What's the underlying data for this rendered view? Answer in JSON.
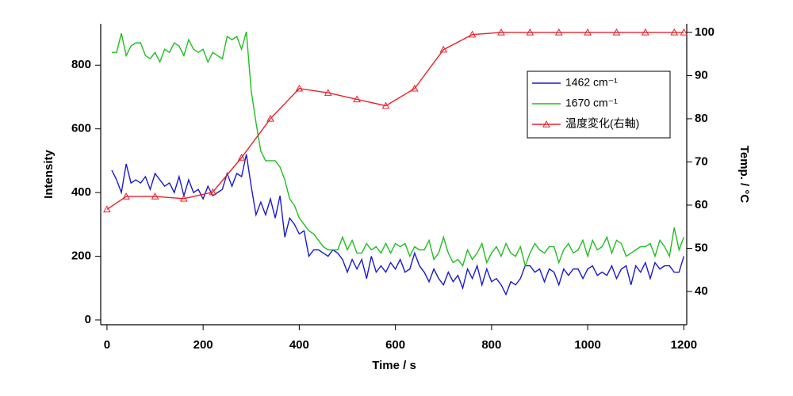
{
  "chart_data": {
    "type": "line",
    "xlabel": "Time / s",
    "ylabel": "Intensity",
    "y2label": "Temp. / °C",
    "xlim": [
      -13,
      1206
    ],
    "ylim": [
      -15,
      930
    ],
    "y2lim": [
      32.3,
      102
    ],
    "xticks": [
      0,
      200,
      400,
      600,
      800,
      1000,
      1200
    ],
    "yticks": [
      0,
      200,
      400,
      600,
      800
    ],
    "y2ticks": [
      40,
      50,
      60,
      70,
      80,
      90,
      100
    ],
    "grid": false,
    "legend": "upper right",
    "series": [
      {
        "name": "1462 cm⁻¹",
        "color": "#1a1acc",
        "x": [
          10,
          20,
          30,
          40,
          50,
          60,
          70,
          80,
          90,
          100,
          110,
          120,
          130,
          140,
          150,
          160,
          170,
          180,
          190,
          200,
          210,
          220,
          230,
          240,
          250,
          260,
          270,
          280,
          290,
          300,
          310,
          320,
          330,
          340,
          350,
          360,
          370,
          380,
          390,
          400,
          410,
          420,
          430,
          440,
          450,
          460,
          470,
          480,
          490,
          500,
          510,
          520,
          530,
          540,
          550,
          560,
          570,
          580,
          590,
          600,
          610,
          620,
          630,
          640,
          650,
          660,
          670,
          680,
          690,
          700,
          710,
          720,
          730,
          740,
          750,
          760,
          770,
          780,
          790,
          800,
          810,
          820,
          830,
          840,
          850,
          860,
          870,
          880,
          890,
          900,
          910,
          920,
          930,
          940,
          950,
          960,
          970,
          980,
          990,
          1000,
          1010,
          1020,
          1030,
          1040,
          1050,
          1060,
          1070,
          1080,
          1090,
          1100,
          1110,
          1120,
          1130,
          1140,
          1150,
          1160,
          1170,
          1180,
          1190,
          1200
        ],
        "values": [
          470,
          440,
          400,
          490,
          430,
          440,
          430,
          450,
          410,
          460,
          440,
          420,
          430,
          400,
          450,
          390,
          440,
          400,
          410,
          380,
          420,
          390,
          400,
          410,
          460,
          420,
          460,
          450,
          520,
          420,
          330,
          370,
          330,
          380,
          320,
          390,
          260,
          320,
          300,
          270,
          280,
          200,
          220,
          220,
          210,
          200,
          220,
          210,
          190,
          150,
          190,
          160,
          190,
          130,
          200,
          150,
          170,
          150,
          180,
          160,
          190,
          150,
          160,
          210,
          170,
          150,
          120,
          160,
          130,
          110,
          150,
          120,
          140,
          100,
          160,
          130,
          170,
          110,
          160,
          120,
          130,
          110,
          80,
          120,
          110,
          130,
          170,
          170,
          150,
          160,
          120,
          160,
          150,
          110,
          160,
          140,
          160,
          160,
          130,
          160,
          170,
          140,
          150,
          140,
          170,
          130,
          160,
          170,
          110,
          170,
          150,
          180,
          130,
          180,
          160,
          170,
          170,
          150,
          150,
          200
        ]
      },
      {
        "name": "1670 cm⁻¹",
        "color": "#1fbf1f",
        "x": [
          10,
          20,
          30,
          40,
          50,
          60,
          70,
          80,
          90,
          100,
          110,
          120,
          130,
          140,
          150,
          160,
          170,
          180,
          190,
          200,
          210,
          220,
          230,
          240,
          250,
          260,
          270,
          280,
          290,
          300,
          310,
          320,
          330,
          340,
          350,
          360,
          370,
          380,
          390,
          400,
          410,
          420,
          430,
          440,
          450,
          460,
          470,
          480,
          490,
          500,
          510,
          520,
          530,
          540,
          550,
          560,
          570,
          580,
          590,
          600,
          610,
          620,
          630,
          640,
          650,
          660,
          670,
          680,
          690,
          700,
          710,
          720,
          730,
          740,
          750,
          760,
          770,
          780,
          790,
          800,
          810,
          820,
          830,
          840,
          850,
          860,
          870,
          880,
          890,
          900,
          910,
          920,
          930,
          940,
          950,
          960,
          970,
          980,
          990,
          1000,
          1010,
          1020,
          1030,
          1040,
          1050,
          1060,
          1070,
          1080,
          1090,
          1100,
          1110,
          1120,
          1130,
          1140,
          1150,
          1160,
          1170,
          1180,
          1190,
          1200
        ],
        "values": [
          840,
          840,
          900,
          830,
          860,
          870,
          870,
          830,
          820,
          840,
          810,
          850,
          840,
          870,
          860,
          830,
          880,
          850,
          840,
          850,
          810,
          840,
          830,
          820,
          890,
          880,
          890,
          850,
          905,
          720,
          620,
          530,
          500,
          500,
          500,
          480,
          440,
          380,
          360,
          320,
          300,
          280,
          270,
          250,
          230,
          220,
          220,
          220,
          260,
          220,
          250,
          210,
          210,
          240,
          220,
          230,
          210,
          240,
          210,
          240,
          230,
          240,
          200,
          230,
          220,
          220,
          250,
          190,
          210,
          260,
          210,
          180,
          190,
          170,
          220,
          190,
          210,
          240,
          180,
          210,
          230,
          200,
          240,
          210,
          200,
          230,
          170,
          210,
          240,
          220,
          210,
          230,
          230,
          180,
          220,
          240,
          210,
          220,
          250,
          200,
          250,
          220,
          230,
          260,
          210,
          250,
          240,
          200,
          210,
          220,
          230,
          230,
          240,
          200,
          250,
          230,
          200,
          290,
          220,
          260
        ]
      },
      {
        "name": "温度変化(右軸)",
        "color": "#e8202a",
        "axis": "y2",
        "x": [
          0,
          40,
          100,
          160,
          220,
          280,
          340,
          400,
          460,
          520,
          580,
          640,
          700,
          760,
          820,
          880,
          940,
          1000,
          1060,
          1120,
          1180,
          1200
        ],
        "values": [
          59,
          62,
          62,
          61.5,
          63,
          71,
          80,
          87,
          86,
          84.5,
          83,
          87,
          96,
          99.5,
          100,
          100,
          100,
          100,
          100,
          100,
          100,
          100
        ]
      }
    ]
  }
}
